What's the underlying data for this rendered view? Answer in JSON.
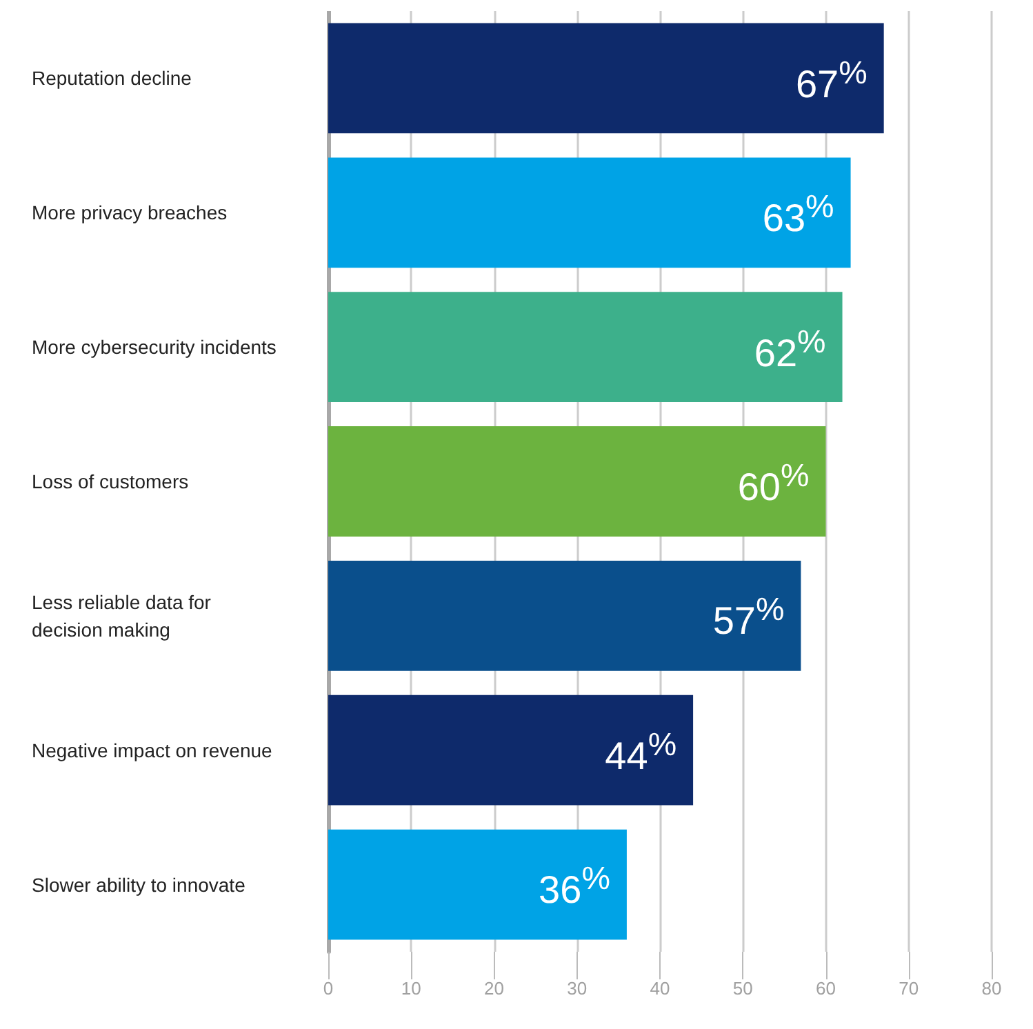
{
  "chart_data": {
    "type": "bar",
    "orientation": "horizontal",
    "categories": [
      "Reputation decline",
      "More privacy breaches",
      "More cybersecurity incidents",
      "Loss of customers",
      "Less reliable data for decision making",
      "Negative impact on revenue",
      "Slower ability to innovate"
    ],
    "values": [
      67,
      63,
      62,
      60,
      57,
      44,
      36
    ],
    "colors": [
      "#0e2a6b",
      "#00a3e6",
      "#3db08b",
      "#6cb33f",
      "#0a4f8c",
      "#0e2a6b",
      "#00a3e6"
    ],
    "value_labels": [
      "67$^{%}$",
      "63$^{%}$",
      "62$^{%}$",
      "60$^{%}$",
      "57$^{%}$",
      "44$^{%}$",
      "36$^{%}$"
    ],
    "xlim": [
      0,
      80
    ],
    "xticks": [
      0,
      10,
      20,
      30,
      40,
      50,
      60,
      70,
      80
    ],
    "grid": "x"
  }
}
